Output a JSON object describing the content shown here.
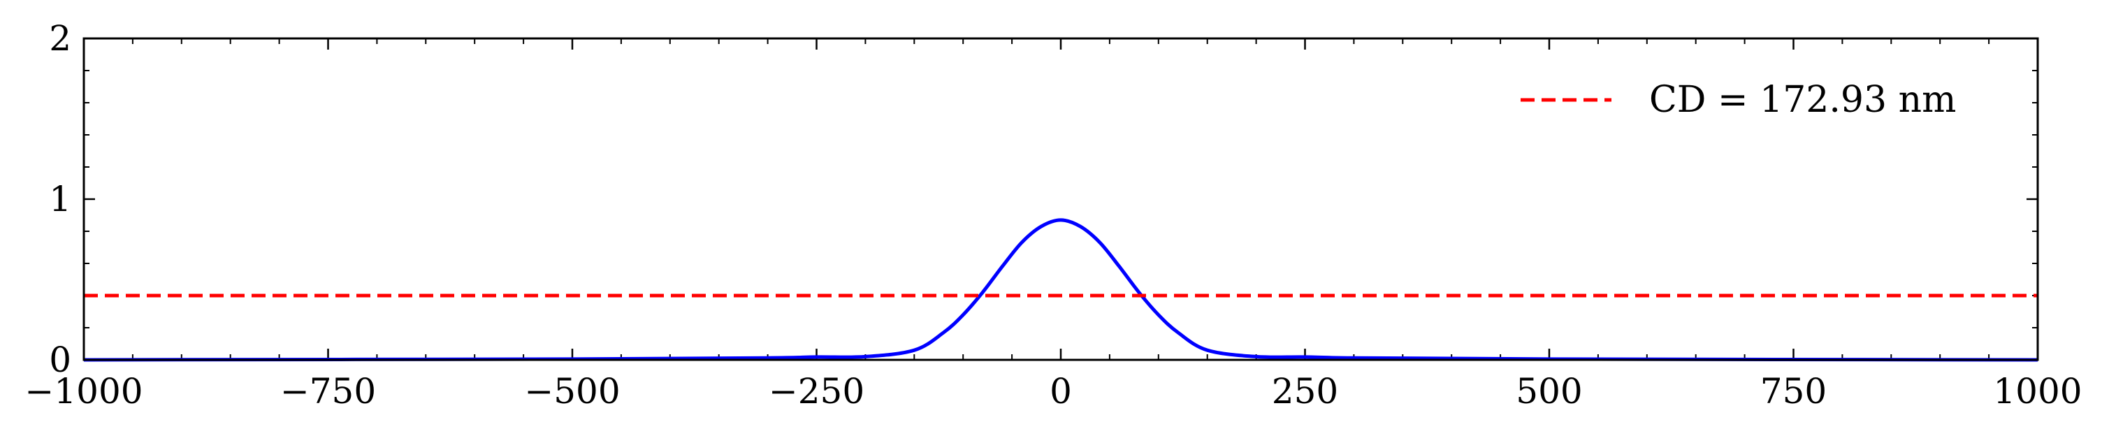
{
  "chart_data": {
    "type": "line",
    "title": "",
    "xlabel": "",
    "ylabel": "",
    "xlim": [
      -1000,
      1000
    ],
    "ylim": [
      0,
      2
    ],
    "grid": false,
    "legend_position": "top-right",
    "x_ticks": [
      -1000,
      -750,
      -500,
      -250,
      0,
      250,
      500,
      750,
      1000
    ],
    "x_tick_labels": [
      "−1000",
      "−750",
      "−500",
      "−250",
      "0",
      "250",
      "500",
      "750",
      "1000"
    ],
    "y_ticks": [
      0,
      1,
      2
    ],
    "y_tick_labels": [
      "0",
      "1",
      "2"
    ],
    "series": [
      {
        "color": "#0000ff",
        "style": "solid",
        "x": [
          -1000,
          -500,
          -300,
          -250,
          -200,
          -150,
          -120,
          -100,
          -80,
          -60,
          -40,
          -20,
          0,
          20,
          40,
          60,
          80,
          100,
          120,
          150,
          200,
          250,
          300,
          500,
          1000
        ],
        "y": [
          0.0,
          0.005,
          0.012,
          0.018,
          0.02,
          0.06,
          0.17,
          0.28,
          0.42,
          0.58,
          0.73,
          0.83,
          0.87,
          0.83,
          0.73,
          0.58,
          0.42,
          0.28,
          0.17,
          0.06,
          0.02,
          0.018,
          0.012,
          0.005,
          0.0
        ]
      },
      {
        "name": "CD = 172.93 nm",
        "color": "#ff0000",
        "style": "dashed",
        "x": [
          -1000,
          1000
        ],
        "y": [
          0.4,
          0.4
        ]
      }
    ],
    "legend": [
      "CD = 172.93 nm"
    ]
  }
}
